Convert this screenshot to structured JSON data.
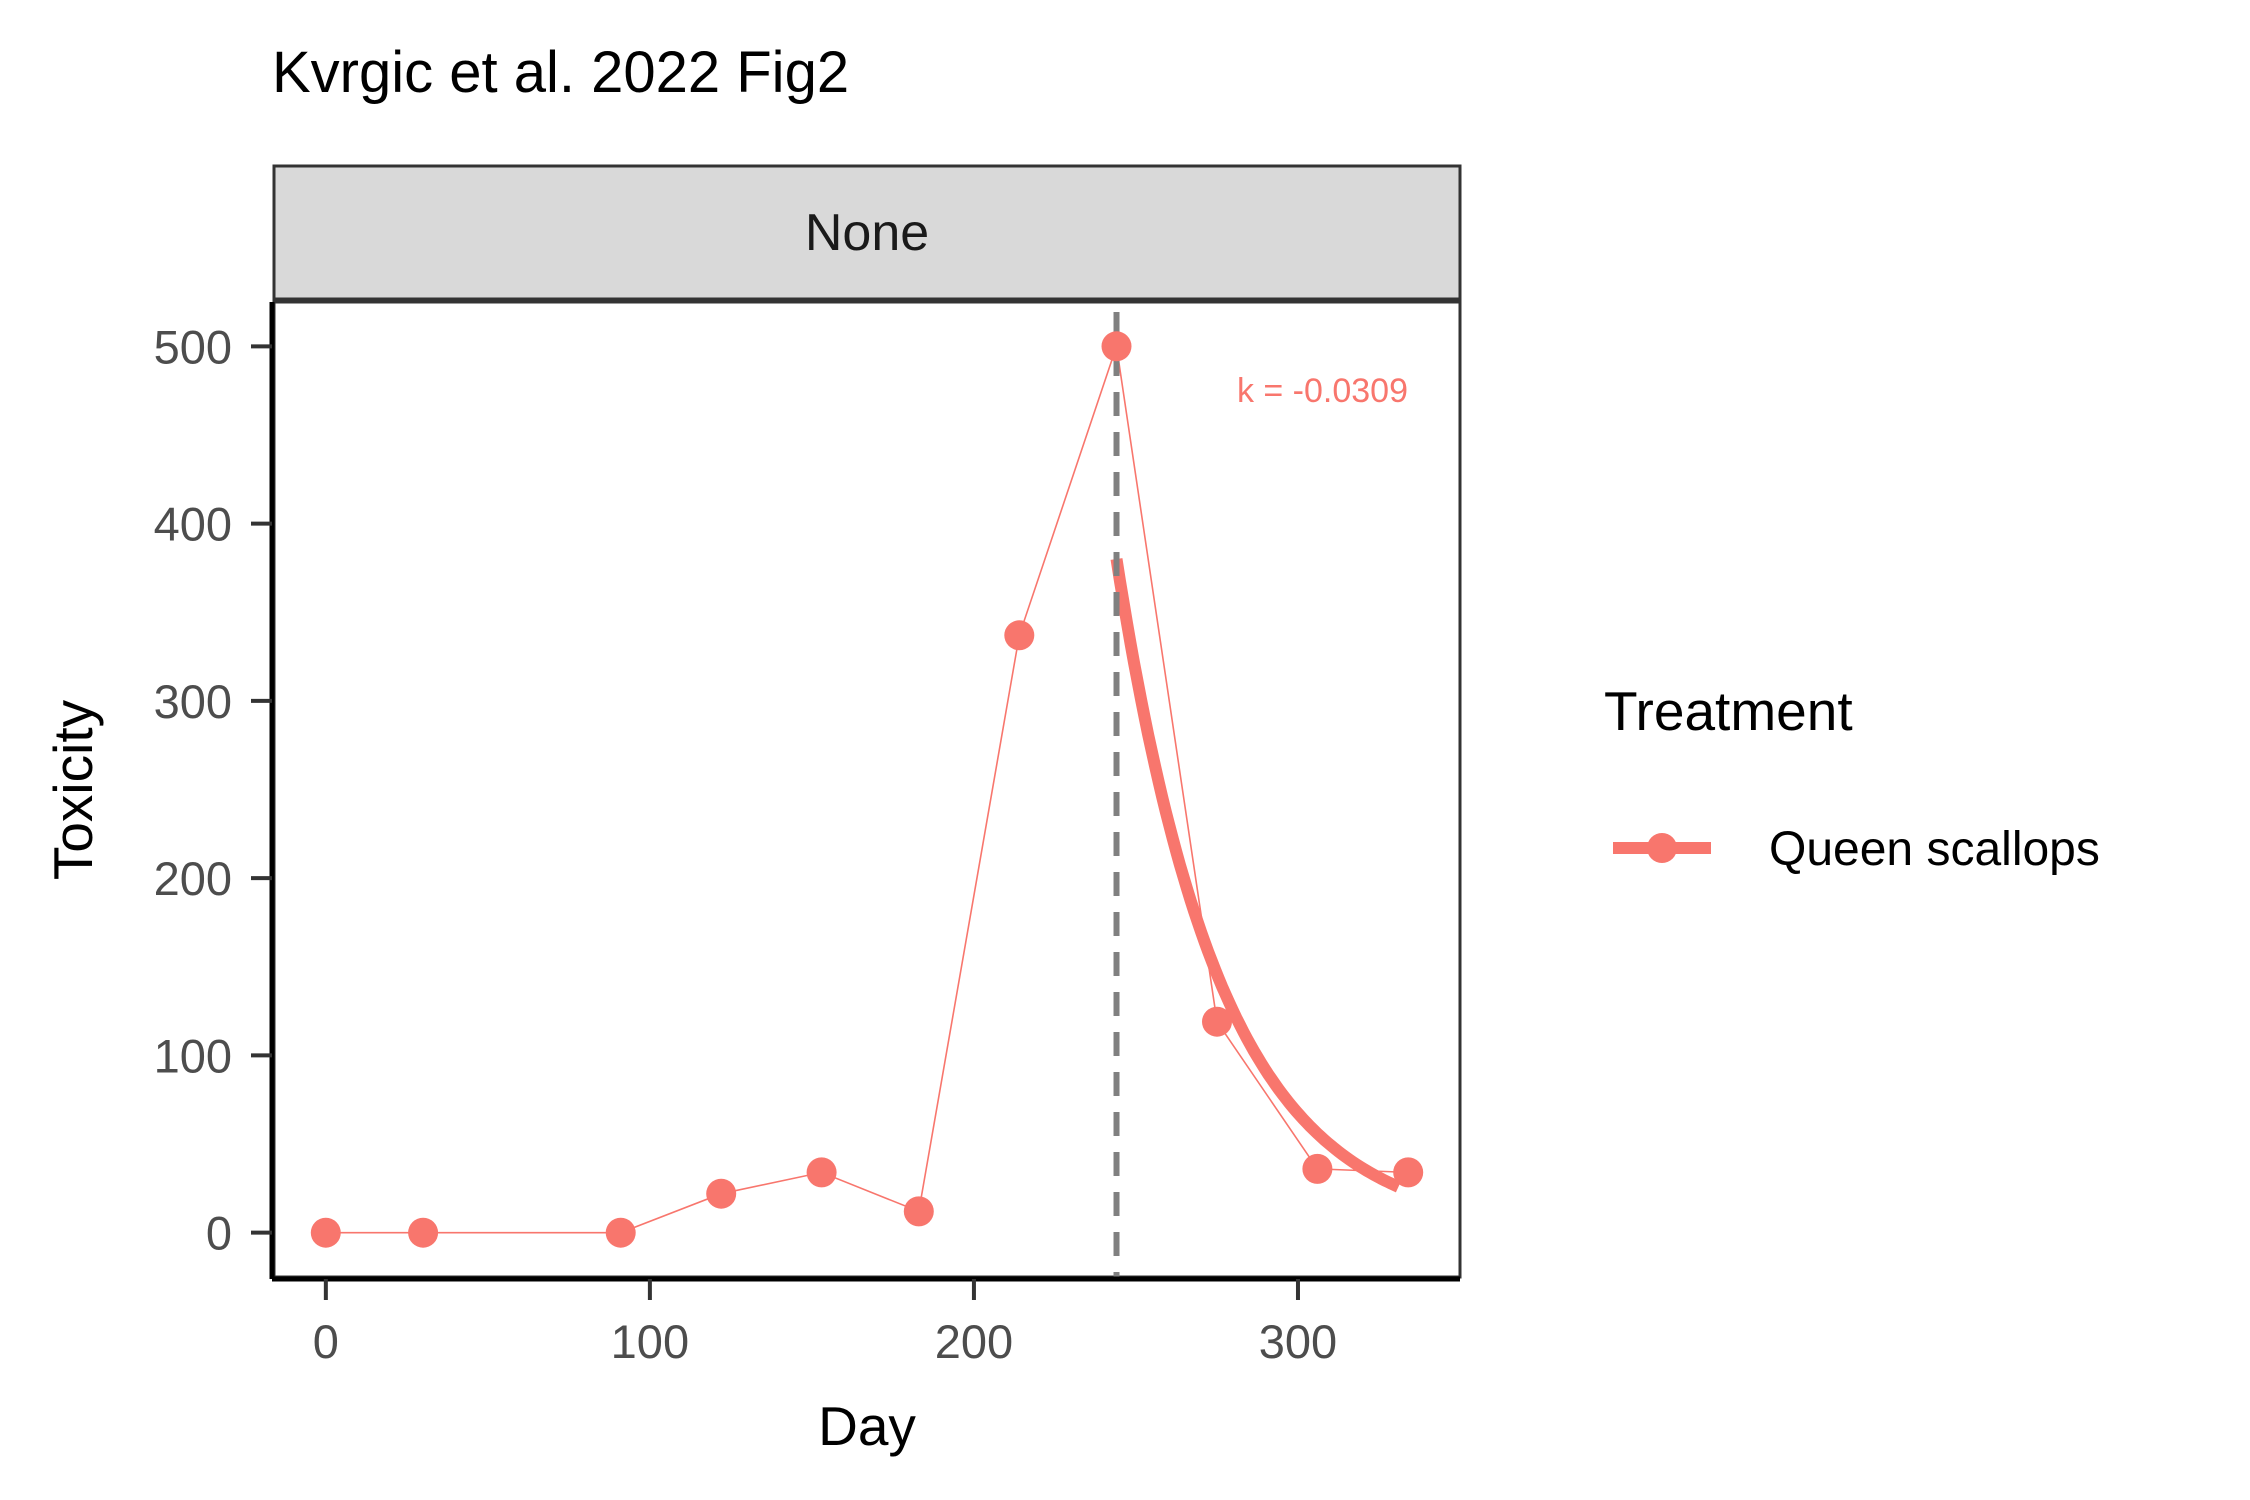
{
  "chart_data": {
    "type": "line",
    "title": "Kvrgic et al. 2022 Fig2",
    "facet_label": "None",
    "xlabel": "Day",
    "ylabel": "Toxicity",
    "xlim": [
      -16,
      350
    ],
    "ylim": [
      -25,
      525
    ],
    "x_ticks": [
      0,
      100,
      200,
      300
    ],
    "y_ticks": [
      0,
      100,
      200,
      300,
      400,
      500
    ],
    "grid": false,
    "legend": {
      "title": "Treatment",
      "position": "right",
      "entries": [
        "Queen scallops"
      ]
    },
    "colors": {
      "series": "#F8766D",
      "vline": "#808080",
      "strip_fill": "#D9D9D9",
      "strip_border": "#333333",
      "panel_border": "#333333"
    },
    "series": [
      {
        "name": "Queen scallops",
        "x": [
          0,
          30,
          91,
          122,
          153,
          183,
          214,
          244,
          275,
          306,
          334
        ],
        "y": [
          0,
          0,
          0,
          22,
          34,
          12,
          337,
          500,
          119,
          36,
          34
        ]
      }
    ],
    "fit": {
      "k": -0.0309,
      "x_start": 244,
      "x_end": 331,
      "y_start": 380
    },
    "vline_x": 244,
    "annotation": "k = -0.0309"
  }
}
